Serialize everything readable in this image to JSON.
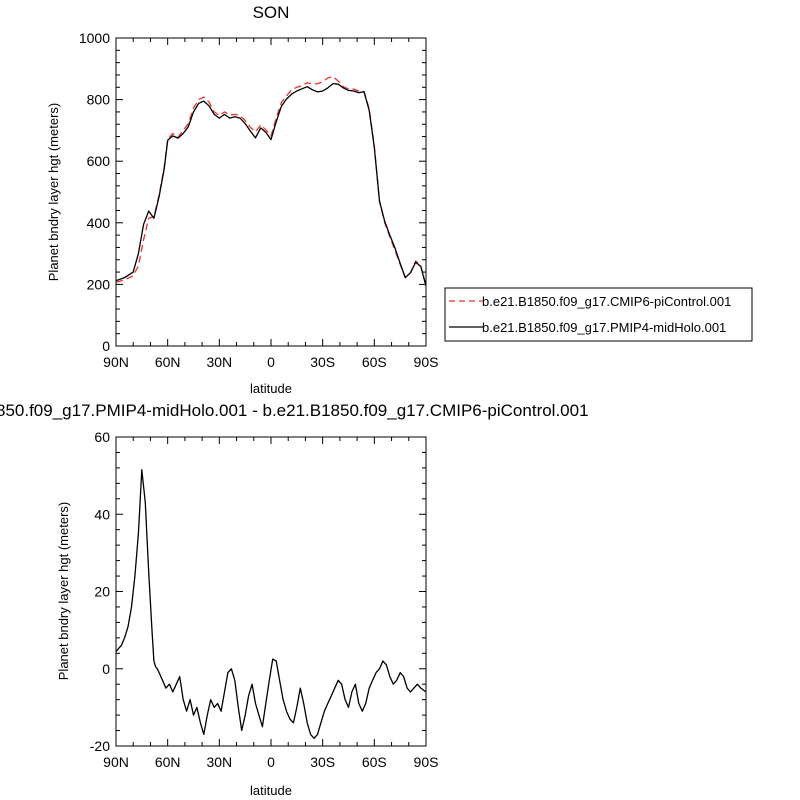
{
  "figure": {
    "top_title": "SON",
    "bottom_title": "850.f09_g17.PMIP4-midHolo.001 - b.e21.B1850.f09_g17.CMIP6-piControl.001"
  },
  "legend": {
    "items": [
      {
        "label": "b.e21.B1850.f09_g17.CMIP6-piControl.001",
        "color": "#e8302e",
        "dashed": true
      },
      {
        "label": "b.e21.B1850.f09_g17.PMIP4-midHolo.001",
        "color": "#000000",
        "dashed": false
      }
    ],
    "placement": "right"
  },
  "chart_data": [
    {
      "type": "line",
      "title": "SON",
      "xlabel": "latitude",
      "ylabel": "Planet bndry layer hgt (meters)",
      "xlim": [
        90,
        -90
      ],
      "ylim": [
        0,
        1000
      ],
      "x_ticks": [
        90,
        60,
        30,
        0,
        -30,
        -60,
        -90
      ],
      "x_tick_labels": [
        "90N",
        "60N",
        "30N",
        "0",
        "30S",
        "60S",
        "90S"
      ],
      "y_ticks": [
        0,
        200,
        400,
        600,
        800,
        1000
      ],
      "y_tick_labels": [
        "0",
        "200",
        "400",
        "600",
        "800",
        "1000"
      ],
      "series": [
        {
          "name": "b.e21.B1850.f09_g17.CMIP6-piControl.001",
          "color": "#e8302e",
          "dashed": true,
          "x": [
            90,
            85,
            80,
            77,
            74,
            71,
            68,
            65,
            62,
            60,
            57,
            54,
            51,
            48,
            45,
            42,
            39,
            36,
            33,
            30,
            27,
            24,
            21,
            18,
            15,
            12,
            9,
            6,
            3,
            0,
            -3,
            -6,
            -9,
            -12,
            -15,
            -18,
            -21,
            -24,
            -27,
            -30,
            -33,
            -36,
            -39,
            -42,
            -45,
            -48,
            -51,
            -54,
            -57,
            -60,
            -63,
            -66,
            -69,
            -72,
            -75,
            -78,
            -81,
            -84,
            -87,
            -90
          ],
          "y": [
            207,
            215,
            228,
            260,
            345,
            415,
            420,
            490,
            580,
            672,
            690,
            678,
            700,
            722,
            772,
            800,
            808,
            792,
            760,
            748,
            760,
            750,
            752,
            748,
            732,
            710,
            695,
            718,
            702,
            682,
            740,
            790,
            812,
            832,
            840,
            845,
            855,
            850,
            852,
            858,
            870,
            875,
            860,
            842,
            835,
            834,
            828,
            826,
            770,
            650,
            470,
            400,
            355,
            310,
            265,
            222,
            238,
            276,
            260,
            195
          ]
        },
        {
          "name": "b.e21.B1850.f09_g17.PMIP4-midHolo.001",
          "color": "#000000",
          "dashed": false,
          "x": [
            90,
            85,
            80,
            77,
            74,
            71,
            68,
            65,
            62,
            60,
            57,
            54,
            51,
            48,
            45,
            42,
            39,
            36,
            33,
            30,
            27,
            24,
            21,
            18,
            15,
            12,
            9,
            6,
            3,
            0,
            -3,
            -6,
            -9,
            -12,
            -15,
            -18,
            -21,
            -24,
            -27,
            -30,
            -33,
            -36,
            -39,
            -42,
            -45,
            -48,
            -51,
            -54,
            -57,
            -60,
            -63,
            -66,
            -69,
            -72,
            -75,
            -78,
            -81,
            -84,
            -87,
            -90
          ],
          "y": [
            212,
            222,
            240,
            300,
            395,
            438,
            415,
            485,
            575,
            668,
            682,
            675,
            690,
            712,
            760,
            788,
            795,
            780,
            752,
            740,
            752,
            740,
            744,
            740,
            722,
            698,
            676,
            708,
            694,
            670,
            728,
            778,
            802,
            818,
            828,
            835,
            842,
            832,
            825,
            828,
            838,
            852,
            850,
            838,
            830,
            828,
            822,
            826,
            765,
            645,
            470,
            405,
            360,
            318,
            268,
            222,
            238,
            272,
            258,
            195
          ]
        }
      ]
    },
    {
      "type": "line",
      "title": "850.f09_g17.PMIP4-midHolo.001 - b.e21.B1850.f09_g17.CMIP6-piControl.001",
      "xlabel": "latitude",
      "ylabel": "Planet bndry layer hgt (meters)",
      "xlim": [
        90,
        -90
      ],
      "ylim": [
        -20,
        60
      ],
      "x_ticks": [
        90,
        60,
        30,
        0,
        -30,
        -60,
        -90
      ],
      "x_tick_labels": [
        "90N",
        "60N",
        "30N",
        "0",
        "30S",
        "60S",
        "90S"
      ],
      "y_ticks": [
        -20,
        0,
        20,
        40,
        60
      ],
      "y_tick_labels": [
        "-20",
        "0",
        "20",
        "40",
        "60"
      ],
      "series": [
        {
          "color": "#000000",
          "dashed": false,
          "x": [
            90,
            87,
            85,
            83,
            81,
            79,
            77,
            75,
            73,
            71,
            69,
            68,
            67,
            66,
            65,
            63,
            61,
            59,
            57,
            55,
            53,
            51,
            49,
            47,
            45,
            43,
            41,
            39,
            37,
            35,
            33,
            31,
            29,
            27,
            25,
            23,
            21,
            19,
            17,
            15,
            13,
            11,
            9,
            7,
            5,
            3,
            1,
            -1,
            -3,
            -5,
            -7,
            -9,
            -11,
            -13,
            -15,
            -17,
            -19,
            -21,
            -23,
            -25,
            -27,
            -29,
            -31,
            -33,
            -35,
            -37,
            -39,
            -41,
            -43,
            -45,
            -47,
            -49,
            -51,
            -53,
            -55,
            -57,
            -59,
            -61,
            -63,
            -65,
            -67,
            -69,
            -71,
            -73,
            -75,
            -77,
            -79,
            -81,
            -83,
            -85,
            -87,
            -90
          ],
          "y": [
            4.5,
            6,
            8,
            11,
            16,
            24,
            35,
            51.5,
            43,
            25,
            9,
            2,
            0.5,
            0,
            -1,
            -3,
            -5,
            -4,
            -6,
            -4,
            -2,
            -8,
            -11,
            -8,
            -12,
            -10,
            -14,
            -17,
            -12,
            -8,
            -10,
            -9,
            -11,
            -6,
            -1,
            0,
            -3,
            -10,
            -16,
            -12,
            -7,
            -4,
            -9,
            -12,
            -15,
            -9,
            -3,
            2.5,
            2,
            -3,
            -8,
            -11,
            -13,
            -14,
            -10,
            -5,
            -9,
            -14,
            -17,
            -18,
            -17,
            -14,
            -11,
            -9,
            -7,
            -5,
            -3,
            -4,
            -8,
            -10,
            -6,
            -4,
            -9,
            -11,
            -9,
            -5,
            -3,
            -1,
            0,
            2,
            1,
            -2,
            -4,
            -3,
            -1,
            -2,
            -5,
            -6,
            -5,
            -4,
            -5,
            -6
          ]
        }
      ]
    }
  ]
}
